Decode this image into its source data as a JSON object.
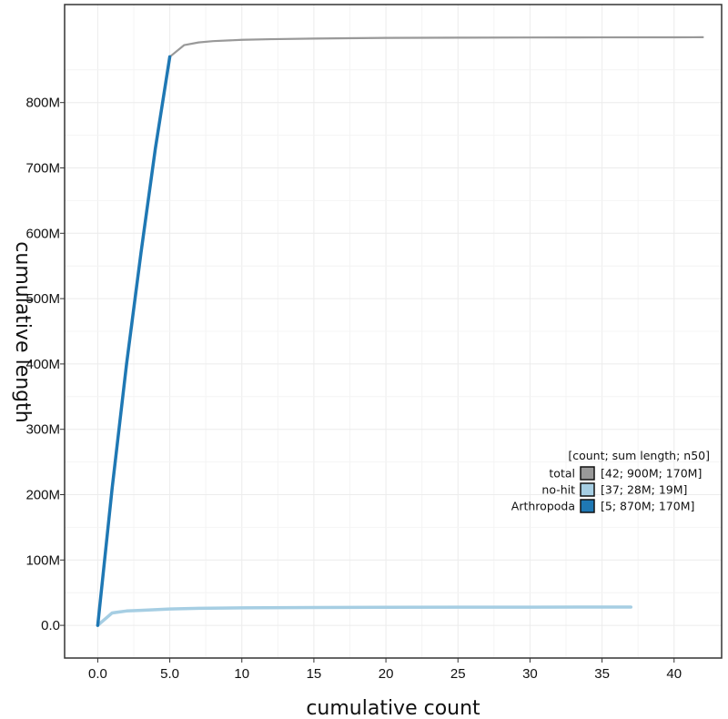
{
  "chart_data": {
    "type": "line",
    "xlabel": "cumulative count",
    "ylabel": "cumulative length",
    "xlim": [
      -2.3,
      43.3
    ],
    "ylim": [
      -50000000,
      950000000
    ],
    "x_ticks": [
      {
        "value": 0,
        "label": "0.0"
      },
      {
        "value": 5,
        "label": "5.0"
      },
      {
        "value": 10,
        "label": "10"
      },
      {
        "value": 15,
        "label": "15"
      },
      {
        "value": 20,
        "label": "20"
      },
      {
        "value": 25,
        "label": "25"
      },
      {
        "value": 30,
        "label": "30"
      },
      {
        "value": 35,
        "label": "35"
      },
      {
        "value": 40,
        "label": "40"
      }
    ],
    "y_ticks": [
      {
        "value": 0,
        "label": "0.0"
      },
      {
        "value": 100000000,
        "label": "100M"
      },
      {
        "value": 200000000,
        "label": "200M"
      },
      {
        "value": 300000000,
        "label": "300M"
      },
      {
        "value": 400000000,
        "label": "400M"
      },
      {
        "value": 500000000,
        "label": "500M"
      },
      {
        "value": 600000000,
        "label": "600M"
      },
      {
        "value": 700000000,
        "label": "700M"
      },
      {
        "value": 800000000,
        "label": "800M"
      }
    ],
    "grid": true,
    "legend": {
      "placement": "right",
      "title": "[count; sum length; n50]"
    },
    "series": [
      {
        "name": "total",
        "stats": "[42; 900M; 170M]",
        "color": "#999999",
        "x": [
          0,
          1,
          2,
          3,
          4,
          5,
          6,
          7,
          8,
          10,
          12,
          15,
          20,
          25,
          30,
          35,
          40,
          42
        ],
        "y": [
          0,
          210000000,
          400000000,
          570000000,
          730000000,
          870000000,
          888000000,
          892000000,
          894000000,
          896000000,
          897000000,
          898000000,
          899000000,
          899300000,
          899600000,
          899800000,
          899900000,
          900000000
        ]
      },
      {
        "name": "no-hit",
        "stats": "[37; 28M; 19M]",
        "color": "#a6cee3",
        "x": [
          0,
          1,
          2,
          3,
          5,
          7,
          10,
          15,
          20,
          25,
          30,
          35,
          37
        ],
        "y": [
          0,
          19000000,
          22000000,
          23000000,
          25000000,
          26000000,
          26800000,
          27300000,
          27600000,
          27800000,
          27900000,
          28000000,
          28000000
        ]
      },
      {
        "name": "Arthropoda",
        "stats": "[5; 870M; 170M]",
        "color": "#1f78b4",
        "x": [
          0,
          1,
          2,
          3,
          4,
          5
        ],
        "y": [
          0,
          210000000,
          400000000,
          570000000,
          730000000,
          870000000
        ]
      }
    ]
  }
}
